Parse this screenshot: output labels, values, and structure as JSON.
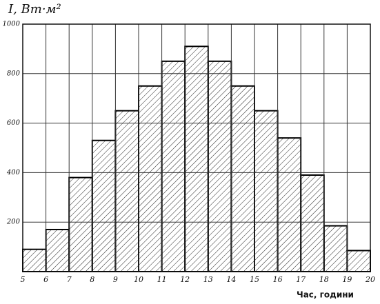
{
  "chart_data": {
    "type": "histogram",
    "y_label": "I, Вт·м²",
    "x_label": "Час, години",
    "bins": [
      5,
      6,
      7,
      8,
      9,
      10,
      11,
      12,
      13,
      14,
      15,
      16,
      17,
      18,
      19,
      20
    ],
    "values": [
      90,
      170,
      380,
      530,
      650,
      750,
      850,
      910,
      850,
      750,
      650,
      540,
      390,
      185,
      85
    ],
    "xlim": [
      5,
      20
    ],
    "xticks": [
      5,
      6,
      7,
      8,
      9,
      10,
      11,
      12,
      13,
      14,
      15,
      16,
      17,
      18,
      19,
      20
    ],
    "ylim": [
      0,
      1000
    ],
    "yticks": [
      200,
      400,
      600,
      800,
      1000
    ],
    "grid": true,
    "color": "#000000"
  }
}
